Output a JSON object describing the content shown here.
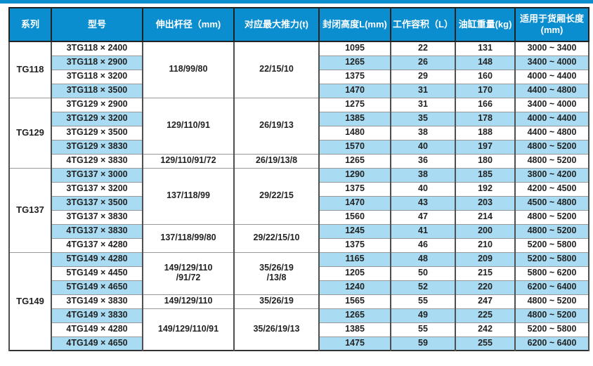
{
  "page": {
    "accent_blue": "#0b8ed0",
    "stripe_blue": "#a9dcf3",
    "header_text_color": "#ffffff",
    "body_text_color": "#222222"
  },
  "table": {
    "headers": [
      "系列",
      "型号",
      "伸出杆径（mm)",
      "对应最大推力(t)",
      "封闭高度L(mm)",
      "工作容积（L）",
      "油缸重量(kg)",
      "适用于货厢长度(mm)"
    ],
    "groups": [
      {
        "series": "TG118",
        "blocks": [
          {
            "rod": "118/99/80",
            "thrust": "22/15/10",
            "rows": [
              {
                "model": "3TG118 × 2400",
                "height": "1095",
                "volume": "22",
                "weight": "131",
                "range": "3000 ~ 3400"
              },
              {
                "model": "3TG118 × 2900",
                "height": "1265",
                "volume": "26",
                "weight": "148",
                "range": "3400 ~ 4000"
              },
              {
                "model": "3TG118 × 3200",
                "height": "1375",
                "volume": "29",
                "weight": "160",
                "range": "4000 ~ 4400"
              },
              {
                "model": "3TG118 × 3500",
                "height": "1470",
                "volume": "31",
                "weight": "170",
                "range": "4400 ~ 4800"
              }
            ]
          }
        ]
      },
      {
        "series": "TG129",
        "blocks": [
          {
            "rod": "129/110/91",
            "thrust": "26/19/13",
            "rows": [
              {
                "model": "3TG129 × 2900",
                "height": "1275",
                "volume": "31",
                "weight": "166",
                "range": "3400 ~ 4000"
              },
              {
                "model": "3TG129 × 3200",
                "height": "1385",
                "volume": "35",
                "weight": "178",
                "range": "4000 ~ 4400"
              },
              {
                "model": "3TG129 × 3500",
                "height": "1480",
                "volume": "38",
                "weight": "188",
                "range": "4400 ~ 4800"
              },
              {
                "model": "3TG129 × 3830",
                "height": "1570",
                "volume": "40",
                "weight": "197",
                "range": "4800 ~ 5200"
              }
            ]
          },
          {
            "rod": "129/110/91/72",
            "thrust": "26/19/13/8",
            "rows": [
              {
                "model": "4TG129 × 3830",
                "height": "1265",
                "volume": "36",
                "weight": "180",
                "range": "4800 ~ 5200"
              }
            ]
          }
        ]
      },
      {
        "series": "TG137",
        "blocks": [
          {
            "rod": "137/118/99",
            "thrust": "29/22/15",
            "rows": [
              {
                "model": "3TG137 × 3000",
                "height": "1290",
                "volume": "38",
                "weight": "185",
                "range": "3800 ~ 4200"
              },
              {
                "model": "3TG137 × 3200",
                "height": "1375",
                "volume": "40",
                "weight": "192",
                "range": "4200 ~ 4500"
              },
              {
                "model": "3TG137 × 3500",
                "height": "1470",
                "volume": "43",
                "weight": "203",
                "range": "4500 ~ 4800"
              },
              {
                "model": "3TG137 × 3830",
                "height": "1560",
                "volume": "47",
                "weight": "214",
                "range": "4800 ~ 5200"
              }
            ]
          },
          {
            "rod": "137/118/99/80",
            "thrust": "29/22/15/10",
            "rows": [
              {
                "model": "4TG137 × 3830",
                "height": "1245",
                "volume": "41",
                "weight": "200",
                "range": "4800 ~ 5200"
              },
              {
                "model": "4TG137 × 4280",
                "height": "1375",
                "volume": "46",
                "weight": "210",
                "range": "5200 ~ 5800"
              }
            ]
          }
        ]
      },
      {
        "series": "TG149",
        "blocks": [
          {
            "rod": "149/129/110\n/91/72",
            "thrust": "35/26/19\n/13/8",
            "rows": [
              {
                "model": "5TG149 × 4280",
                "height": "1165",
                "volume": "48",
                "weight": "209",
                "range": "5200 ~ 5800"
              },
              {
                "model": "5TG149 × 4450",
                "height": "1205",
                "volume": "50",
                "weight": "215",
                "range": "5800 ~ 6200"
              },
              {
                "model": "5TG149 × 4650",
                "height": "1240",
                "volume": "52",
                "weight": "220",
                "range": "6200 ~ 6400"
              }
            ]
          },
          {
            "rod": "149/129/110",
            "thrust": "35/26/19",
            "rows": [
              {
                "model": "3TG149 × 3830",
                "height": "1565",
                "volume": "55",
                "weight": "247",
                "range": "4800 ~ 5200"
              }
            ]
          },
          {
            "rod": "149/129/110/91",
            "thrust": "35/26/19/13",
            "rows": [
              {
                "model": "4TG149 × 3830",
                "height": "1265",
                "volume": "49",
                "weight": "225",
                "range": "4800 ~ 5200"
              },
              {
                "model": "4TG149 × 4280",
                "height": "1385",
                "volume": "55",
                "weight": "242",
                "range": "5200 ~ 5800"
              },
              {
                "model": "4TG149 × 4650",
                "height": "1475",
                "volume": "59",
                "weight": "255",
                "range": "6200 ~ 6400"
              }
            ]
          }
        ]
      }
    ]
  }
}
